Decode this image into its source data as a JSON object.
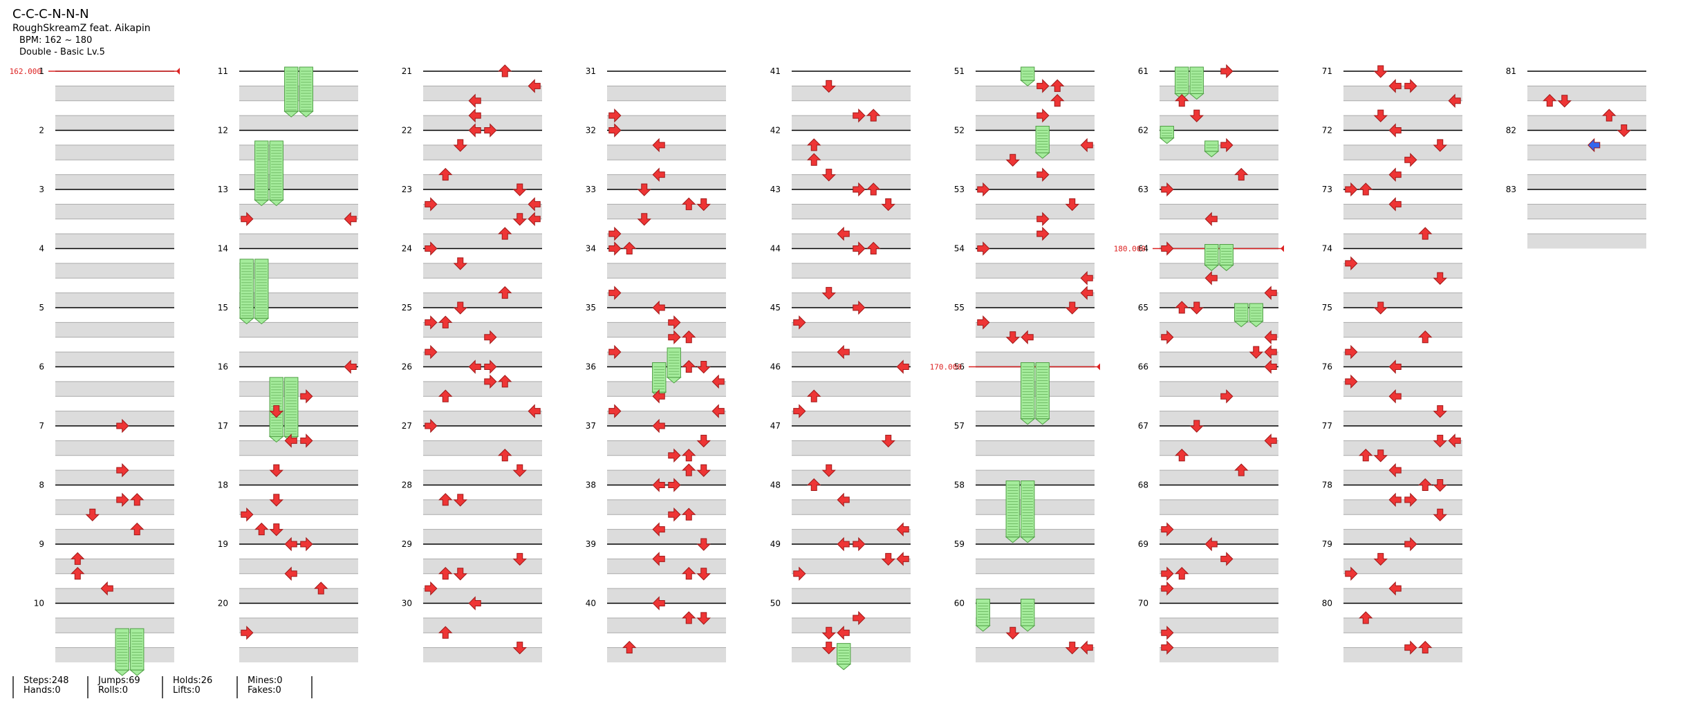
{
  "song": {
    "title": "C-C-C-N-N-N",
    "artist": "RoughSkreamZ feat. Aikapin",
    "bpm_text": "BPM: 162 ~ 180",
    "chart_text": "Double - Basic  Lv.5"
  },
  "bpm_changes": [
    {
      "label": "162.000",
      "measure": 1
    },
    {
      "label": "170.000",
      "measure": 56
    },
    {
      "label": "180.000",
      "measure": 64
    }
  ],
  "measures": {
    "first": 1,
    "last": 83,
    "per_column": 10
  },
  "stats": [
    {
      "a": "Steps:248",
      "b": "Hands:0"
    },
    {
      "a": "Jumps:69",
      "b": "Rolls:0"
    },
    {
      "a": "Holds:26",
      "b": "Lifts:0"
    },
    {
      "a": "Mines:0",
      "b": "Fakes:0"
    }
  ],
  "colors": {
    "arrow": "#ee3535",
    "arrow_alt": "#3366ee",
    "hold_fill": "#a5ec9c",
    "hold_line": "#4f9e44",
    "bpm_line": "#dd2222",
    "lane_shade": "#dcdcdc"
  },
  "icons": [
    "arrow-left-icon",
    "arrow-down-icon",
    "arrow-up-icon",
    "arrow-right-icon",
    "hold-note-icon",
    "bpm-marker-icon"
  ]
}
